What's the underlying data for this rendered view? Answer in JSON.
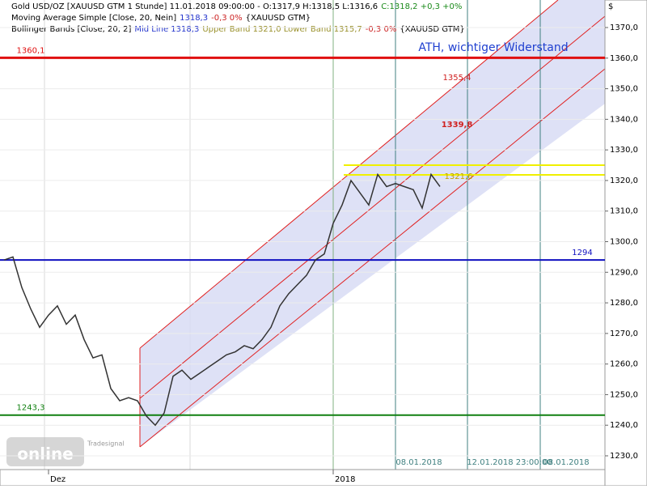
{
  "chart_data": {
    "type": "line",
    "header": [
      [
        {
          "text": "Gold USD/OZ [XAUUSD GTM  1 Stunde] 11.01.2018 09:00:00 - O:1317,9 H:1318,5 L:1316,6",
          "color": "#000000"
        },
        {
          "text": "C:1318,2 +0,3 +0%",
          "color": "#1a8a1a"
        }
      ],
      [
        {
          "text": "Moving Average Simple [Close, 20, Nein]",
          "color": "#000000"
        },
        {
          "text": "1318,3",
          "color": "#2233cc"
        },
        {
          "text": "-0,3 0%",
          "color": "#cc2222"
        },
        {
          "text": "{XAUUSD GTM}",
          "color": "#000000"
        }
      ],
      [
        {
          "text": "Bollinger Bands [Close, 20, 2]",
          "color": "#000000"
        },
        {
          "text": "Mid Line 1318,3",
          "color": "#2233cc"
        },
        {
          "text": "Upper Band 1321,0 Lower Band 1315,7",
          "color": "#99902a"
        },
        {
          "text": "-0,3 0%",
          "color": "#cc2222"
        },
        {
          "text": "{XAUUSD GTM}",
          "color": "#000000"
        }
      ]
    ],
    "y_axis_label": "$",
    "categories": [
      null,
      null,
      null,
      null,
      null,
      "Dez",
      null,
      null,
      null,
      null,
      null,
      null,
      null,
      null,
      null,
      null,
      null,
      null,
      null,
      null,
      null,
      null,
      null,
      null,
      null,
      null,
      null,
      null,
      null,
      null,
      null,
      null,
      null,
      null,
      null,
      null,
      null,
      "2018",
      null,
      null,
      null,
      null,
      null,
      null,
      null,
      null,
      null,
      null,
      null,
      null
    ],
    "values": [
      1294,
      1295,
      1285,
      1278,
      1272,
      1276,
      1279,
      1273,
      1276,
      1268,
      1262,
      1263,
      1252,
      1248,
      1249,
      1248,
      1243,
      1240,
      1244,
      1256,
      1258,
      1255,
      1257,
      1259,
      1261,
      1263,
      1264,
      1266,
      1265,
      1268,
      1272,
      1279,
      1283,
      1286,
      1289,
      1294,
      1296,
      1306,
      1312,
      1320,
      1316,
      1312,
      1322,
      1318,
      1319,
      1318,
      1317,
      1311,
      1322,
      1318
    ],
    "color": "#333333",
    "ylim": [
      1225.5,
      1379
    ],
    "yticks": [
      {
        "value": 1230,
        "label": "1230,0"
      },
      {
        "value": 1240,
        "label": "1240,0"
      },
      {
        "value": 1250,
        "label": "1250,0"
      },
      {
        "value": 1260,
        "label": "1260,0"
      },
      {
        "value": 1270,
        "label": "1270,0"
      },
      {
        "value": 1280,
        "label": "1280,0"
      },
      {
        "value": 1290,
        "label": "1290,0"
      },
      {
        "value": 1300,
        "label": "1300,0"
      },
      {
        "value": 1310,
        "label": "1310,0"
      },
      {
        "value": 1320,
        "label": "1320,0"
      },
      {
        "value": 1330,
        "label": "1330,0"
      },
      {
        "value": 1340,
        "label": "1340,0"
      },
      {
        "value": 1350,
        "label": "1350,0"
      },
      {
        "value": 1360,
        "label": "1360,0"
      },
      {
        "value": 1370,
        "label": "1370,0"
      }
    ],
    "hlines": [
      {
        "value": 1360.1,
        "label": "1360,1",
        "color": "#e01010"
      },
      {
        "value": 1294,
        "label": "1294",
        "color": "#1010c0"
      },
      {
        "value": 1243.3,
        "label": "1243,3",
        "color": "#108010"
      }
    ],
    "annotations": [
      "ATH, wichtiger Widerstand",
      "1355,4",
      "1339,8",
      "1321,6"
    ],
    "date_labels": [
      "08.01.2018",
      "12.01.2018 23:00:00",
      "08.01.2018"
    ],
    "logo": [
      "Tradesignal",
      "online"
    ]
  }
}
